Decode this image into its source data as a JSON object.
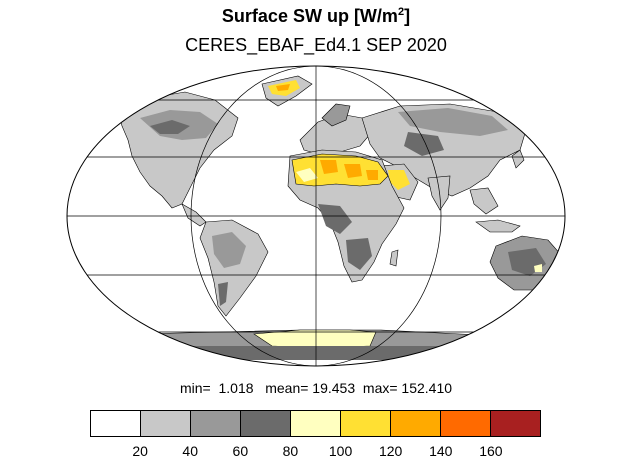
{
  "title_main": "Surface SW up [W/m",
  "title_sup": "2",
  "title_close": "]",
  "subtitle": "CERES_EBAF_Ed4.1 SEP 2020",
  "stats": {
    "min_label": "min=",
    "min_value": "1.018",
    "mean_label": "mean=",
    "mean_value": "19.453",
    "max_label": "max=",
    "max_value": "152.410"
  },
  "colorbar": {
    "colors": [
      "#ffffff",
      "#c8c8c8",
      "#999999",
      "#6b6b6b",
      "#ffffc0",
      "#ffe033",
      "#ffaa00",
      "#ff6a00",
      "#a82020"
    ],
    "labels": [
      "20",
      "40",
      "60",
      "80",
      "100",
      "120",
      "140",
      "160"
    ]
  },
  "map": {
    "projection": "Mollweide",
    "land_color": "#c8c8c8",
    "ocean_color": "#ffffff"
  }
}
